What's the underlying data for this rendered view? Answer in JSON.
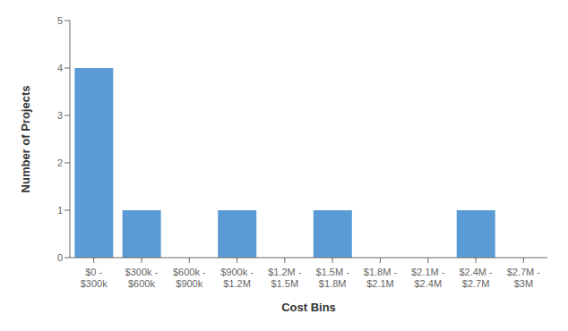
{
  "chart_data": {
    "type": "bar",
    "categories": [
      "$0 -\n$300k",
      "$300k -\n$600k",
      "$600k -\n$900k",
      "$900k -\n$1.2M",
      "$1.2M -\n$1.5M",
      "$1.5M -\n$1.8M",
      "$1.8M -\n$2.1M",
      "$2.1M -\n$2.4M",
      "$2.4M -\n$2.7M",
      "$2.7M -\n$3M"
    ],
    "values": [
      4,
      1,
      0,
      1,
      0,
      1,
      0,
      0,
      1,
      0
    ],
    "color": "#5B9BD5",
    "xlabel": "Cost Bins",
    "ylabel": "Number of Projects",
    "ylim": [
      0,
      5
    ],
    "yticks": [
      0,
      1,
      2,
      3,
      4,
      5
    ],
    "grid": false
  }
}
